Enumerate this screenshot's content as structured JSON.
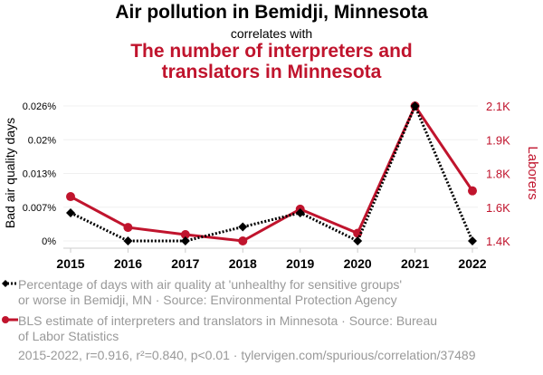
{
  "header": {
    "title": "Air pollution in Bemidji, Minnesota",
    "correlates": "correlates with",
    "title2_line1": "The number of interpreters and",
    "title2_line2": "translators in Minnesota"
  },
  "chart_data": {
    "type": "line",
    "x": [
      2015,
      2016,
      2017,
      2018,
      2019,
      2020,
      2021,
      2022
    ],
    "series": [
      {
        "name": "Percentage of days with air quality at 'unhealthy for sensitive groups' or worse in Bemidji, MN · Source: Environmental Protection Agency",
        "axis": "left",
        "color": "#000000",
        "values": [
          0.00548,
          0,
          0,
          0.00274,
          0.00548,
          0,
          0.0263,
          0
        ]
      },
      {
        "name": "BLS estimate of interpreters and translators in Minnesota · Source: Bureau of Labor Statistics",
        "axis": "right",
        "color": "#c0142d",
        "values": [
          1630,
          1470,
          1433,
          1400,
          1565,
          1440,
          2100,
          1660
        ]
      }
    ],
    "ylabel": "Bad air quality days",
    "y2label": "Laborers",
    "ylim": [
      0,
      0.0263
    ],
    "y2lim": [
      1400,
      2100
    ],
    "yticks": [
      "0%",
      "0.007%",
      "0.013%",
      "0.02%",
      "0.026%"
    ],
    "y2ticks": [
      "1.4K",
      "1.6K",
      "1.8K",
      "1.9K",
      "2.1K"
    ],
    "xticks": [
      "2015",
      "2016",
      "2017",
      "2018",
      "2019",
      "2020",
      "2021",
      "2022"
    ]
  },
  "legend": {
    "l1a": "Percentage of days with air quality at 'unhealthy for sensitive groups'",
    "l1b": "or worse in Bemidji, MN · Source: Environmental Protection Agency",
    "l2a": "BLS estimate of interpreters and translators in Minnesota · Source: Bureau",
    "l2b": "of Labor Statistics"
  },
  "footer": "2015-2022, r=0.916, r²=0.840, p<0.01 · tylervigen.com/spurious/correlation/37489"
}
